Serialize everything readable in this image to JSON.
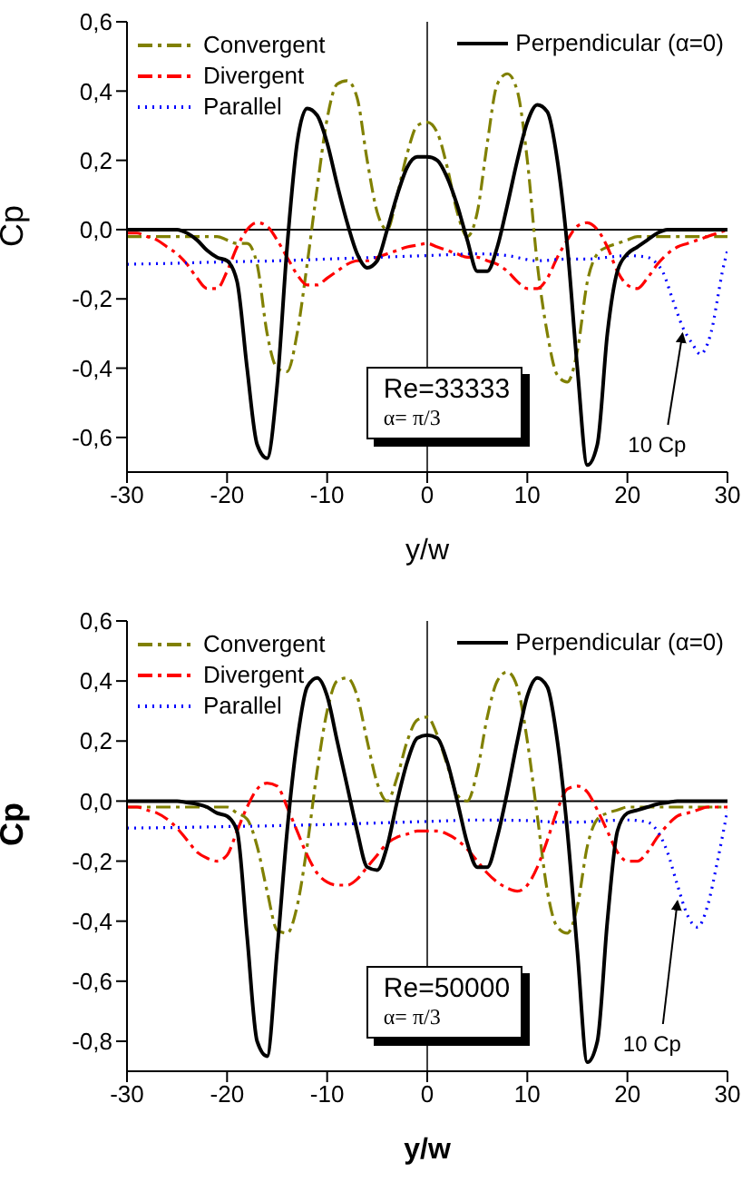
{
  "chart_data": [
    {
      "type": "line",
      "xlabel": "y/w",
      "ylabel": "Cp",
      "xlim": [
        -30,
        30
      ],
      "xticks": [
        -30,
        -20,
        -10,
        0,
        10,
        20,
        30
      ],
      "ylim": [
        -0.7,
        0.6
      ],
      "yticks": [
        {
          "value": -0.6,
          "label": "-0,6"
        },
        {
          "value": -0.4,
          "label": "-0,4"
        },
        {
          "value": -0.2,
          "label": "-0,2"
        },
        {
          "value": 0,
          "label": "0,0"
        },
        {
          "value": 0.2,
          "label": "0,2"
        },
        {
          "value": 0.4,
          "label": "0,4"
        },
        {
          "value": 0.6,
          "label": "0,6"
        }
      ],
      "legend": "top",
      "marker": "none",
      "x": [
        -30,
        -29,
        -28,
        -27,
        -26,
        -25,
        -24,
        -23,
        -22,
        -21,
        -20,
        -19,
        -18,
        -17,
        -16,
        -15,
        -14,
        -13,
        -12,
        -11,
        -10,
        -9,
        -8,
        -7,
        -6,
        -5,
        -4,
        -3,
        -2,
        -1,
        0,
        1,
        2,
        3,
        4,
        5,
        6,
        7,
        8,
        9,
        10,
        11,
        12,
        13,
        14,
        15,
        16,
        17,
        18,
        19,
        20,
        21,
        22,
        23,
        24,
        25,
        26,
        27,
        28,
        29,
        30
      ],
      "series": [
        {
          "name": "Convergent",
          "color": "#808000",
          "line_style": "dashed",
          "values": [
            -0.02,
            -0.02,
            -0.02,
            -0.02,
            -0.02,
            -0.02,
            -0.02,
            -0.02,
            -0.02,
            -0.02,
            -0.03,
            -0.04,
            -0.04,
            -0.1,
            -0.3,
            -0.4,
            -0.41,
            -0.3,
            -0.1,
            0.12,
            0.32,
            0.42,
            0.43,
            0.38,
            0.2,
            0.05,
            0,
            0.1,
            0.22,
            0.3,
            0.31,
            0.28,
            0.18,
            0.05,
            -0.02,
            0.05,
            0.25,
            0.42,
            0.45,
            0.4,
            0.2,
            -0.1,
            -0.3,
            -0.42,
            -0.44,
            -0.35,
            -0.15,
            -0.07,
            -0.05,
            -0.04,
            -0.03,
            -0.02,
            -0.02,
            -0.02,
            -0.02,
            -0.02,
            -0.02,
            -0.02,
            -0.02,
            -0.02,
            -0.02
          ]
        },
        {
          "name": "Divergent",
          "color": "#ff0000",
          "line_style": "dashed",
          "values": [
            -0.01,
            -0.01,
            -0.02,
            -0.03,
            -0.05,
            -0.07,
            -0.1,
            -0.14,
            -0.17,
            -0.17,
            -0.12,
            -0.05,
            0,
            0.02,
            0.01,
            -0.03,
            -0.08,
            -0.13,
            -0.16,
            -0.16,
            -0.14,
            -0.12,
            -0.1,
            -0.09,
            -0.09,
            -0.08,
            -0.07,
            -0.06,
            -0.05,
            -0.045,
            -0.04,
            -0.05,
            -0.06,
            -0.07,
            -0.08,
            -0.08,
            -0.09,
            -0.1,
            -0.12,
            -0.15,
            -0.17,
            -0.17,
            -0.14,
            -0.08,
            -0.03,
            0.01,
            0.02,
            0,
            -0.05,
            -0.12,
            -0.16,
            -0.17,
            -0.14,
            -0.1,
            -0.07,
            -0.05,
            -0.04,
            -0.03,
            -0.02,
            -0.01,
            0
          ]
        },
        {
          "name": "Parallel",
          "color": "#0000ff",
          "line_style": "dotted",
          "x": [
            -30,
            -25,
            -20,
            -15,
            -10,
            -5,
            0,
            5,
            8,
            11,
            14,
            16,
            18,
            20,
            22,
            23,
            23.5,
            24.5,
            25.5,
            26.5,
            27.3,
            28,
            28.5,
            29,
            29.5,
            30
          ],
          "values": [
            -0.1,
            -0.097,
            -0.093,
            -0.09,
            -0.085,
            -0.08,
            -0.075,
            -0.07,
            -0.075,
            -0.09,
            -0.085,
            -0.085,
            -0.08,
            -0.075,
            -0.08,
            -0.1,
            -0.12,
            -0.2,
            -0.28,
            -0.33,
            -0.36,
            -0.33,
            -0.28,
            -0.2,
            -0.12,
            -0.06
          ]
        },
        {
          "name": "Perpendicular (α=0)",
          "color": "#000000",
          "line_style": "solid",
          "values": [
            0,
            0,
            0,
            0,
            0,
            0,
            -0.01,
            -0.03,
            -0.06,
            -0.08,
            -0.09,
            -0.15,
            -0.4,
            -0.62,
            -0.66,
            -0.45,
            -0.05,
            0.25,
            0.35,
            0.33,
            0.25,
            0.13,
            0.02,
            -0.07,
            -0.11,
            -0.09,
            0,
            0.1,
            0.18,
            0.21,
            0.21,
            0.2,
            0.15,
            0.07,
            -0.03,
            -0.12,
            -0.12,
            -0.05,
            0.07,
            0.2,
            0.31,
            0.36,
            0.34,
            0.2,
            -0.05,
            -0.4,
            -0.68,
            -0.62,
            -0.3,
            -0.12,
            -0.07,
            -0.05,
            -0.03,
            -0.01,
            0,
            0,
            0,
            0,
            0,
            0,
            0
          ]
        }
      ],
      "ref_lines": [
        {
          "axis": "x",
          "value": 0,
          "color": "#404040"
        },
        {
          "axis": "y",
          "value": 0,
          "color": "#000000"
        }
      ],
      "annotations": [
        "Re=33333",
        "α= π/3",
        {
          "text": "10 Cp",
          "x": 25.5,
          "y": -0.28
        }
      ]
    },
    {
      "type": "line",
      "xlabel": "y/w",
      "ylabel": "Cp",
      "xlim": [
        -30,
        30
      ],
      "xticks": [
        -30,
        -20,
        -10,
        0,
        10,
        20,
        30
      ],
      "ylim": [
        -0.9,
        0.6
      ],
      "yticks": [
        {
          "value": -0.8,
          "label": "-0,8"
        },
        {
          "value": -0.6,
          "label": "-0,6"
        },
        {
          "value": -0.4,
          "label": "-0,4"
        },
        {
          "value": -0.2,
          "label": "-0,2"
        },
        {
          "value": 0,
          "label": "0,0"
        },
        {
          "value": 0.2,
          "label": "0,2"
        },
        {
          "value": 0.4,
          "label": "0,4"
        },
        {
          "value": 0.6,
          "label": "0,6"
        }
      ],
      "legend": "top",
      "marker": "none",
      "x": [
        -30,
        -29,
        -28,
        -27,
        -26,
        -25,
        -24,
        -23,
        -22,
        -21,
        -20,
        -19,
        -18,
        -17,
        -16,
        -15,
        -14,
        -13,
        -12,
        -11,
        -10,
        -9,
        -8,
        -7,
        -6,
        -5,
        -4,
        -3,
        -2,
        -1,
        0,
        1,
        2,
        3,
        4,
        5,
        6,
        7,
        8,
        9,
        10,
        11,
        12,
        13,
        14,
        15,
        16,
        17,
        18,
        19,
        20,
        21,
        22,
        23,
        24,
        25,
        26,
        27,
        28,
        29,
        30
      ],
      "series": [
        {
          "name": "Convergent",
          "color": "#808000",
          "line_style": "dashed",
          "values": [
            -0.02,
            -0.02,
            -0.02,
            -0.02,
            -0.02,
            -0.02,
            -0.02,
            -0.02,
            -0.02,
            -0.02,
            -0.02,
            -0.04,
            -0.06,
            -0.15,
            -0.3,
            -0.43,
            -0.44,
            -0.35,
            -0.15,
            0.1,
            0.3,
            0.4,
            0.41,
            0.35,
            0.2,
            0.06,
            0,
            0.08,
            0.2,
            0.27,
            0.28,
            0.22,
            0.12,
            0.02,
            0,
            0.1,
            0.28,
            0.4,
            0.43,
            0.38,
            0.2,
            -0.05,
            -0.3,
            -0.42,
            -0.44,
            -0.35,
            -0.15,
            -0.06,
            -0.04,
            -0.03,
            -0.02,
            -0.02,
            -0.02,
            -0.02,
            -0.02,
            -0.02,
            -0.02,
            -0.02,
            -0.02,
            -0.02,
            -0.02
          ]
        },
        {
          "name": "Divergent",
          "color": "#ff0000",
          "line_style": "dashed",
          "values": [
            -0.02,
            -0.02,
            -0.03,
            -0.04,
            -0.06,
            -0.09,
            -0.13,
            -0.17,
            -0.19,
            -0.2,
            -0.18,
            -0.1,
            -0.02,
            0.04,
            0.06,
            0.05,
            -0.02,
            -0.1,
            -0.18,
            -0.24,
            -0.27,
            -0.28,
            -0.28,
            -0.26,
            -0.22,
            -0.18,
            -0.14,
            -0.12,
            -0.11,
            -0.1,
            -0.1,
            -0.1,
            -0.11,
            -0.13,
            -0.16,
            -0.2,
            -0.24,
            -0.27,
            -0.29,
            -0.3,
            -0.28,
            -0.22,
            -0.13,
            -0.03,
            0.04,
            0.05,
            0.03,
            -0.03,
            -0.1,
            -0.17,
            -0.2,
            -0.2,
            -0.17,
            -0.12,
            -0.08,
            -0.05,
            -0.04,
            -0.03,
            -0.02,
            -0.02,
            -0.02
          ]
        },
        {
          "name": "Parallel",
          "color": "#0000ff",
          "line_style": "dotted",
          "x": [
            -30,
            -25,
            -20,
            -15,
            -10,
            -5,
            0,
            5,
            10,
            13,
            15,
            18,
            20,
            22,
            23,
            24,
            25,
            26,
            27,
            28,
            29,
            30
          ],
          "values": [
            -0.09,
            -0.088,
            -0.085,
            -0.082,
            -0.078,
            -0.073,
            -0.068,
            -0.063,
            -0.065,
            -0.07,
            -0.07,
            -0.065,
            -0.063,
            -0.07,
            -0.1,
            -0.17,
            -0.28,
            -0.38,
            -0.42,
            -0.35,
            -0.2,
            -0.03
          ]
        },
        {
          "name": "Perpendicular (α=0)",
          "color": "#000000",
          "line_style": "solid",
          "values": [
            0,
            0,
            0,
            0,
            0,
            0,
            -0.005,
            -0.01,
            -0.02,
            -0.04,
            -0.05,
            -0.1,
            -0.45,
            -0.8,
            -0.85,
            -0.5,
            -0.1,
            0.2,
            0.38,
            0.41,
            0.35,
            0.2,
            0.05,
            -0.1,
            -0.22,
            -0.23,
            -0.15,
            0,
            0.13,
            0.21,
            0.22,
            0.21,
            0.13,
            0,
            -0.14,
            -0.22,
            -0.22,
            -0.12,
            0.03,
            0.2,
            0.35,
            0.41,
            0.38,
            0.2,
            -0.1,
            -0.5,
            -0.87,
            -0.8,
            -0.4,
            -0.1,
            -0.04,
            -0.03,
            -0.02,
            -0.01,
            -0.005,
            0,
            0,
            0,
            0,
            0,
            0
          ]
        }
      ],
      "ref_lines": [
        {
          "axis": "x",
          "value": 0,
          "color": "#404040"
        },
        {
          "axis": "y",
          "value": 0,
          "color": "#000000"
        }
      ],
      "annotations": [
        "Re=50000",
        "α= π/3",
        {
          "text": "10 Cp",
          "x": 25,
          "y": -0.31
        }
      ]
    }
  ]
}
